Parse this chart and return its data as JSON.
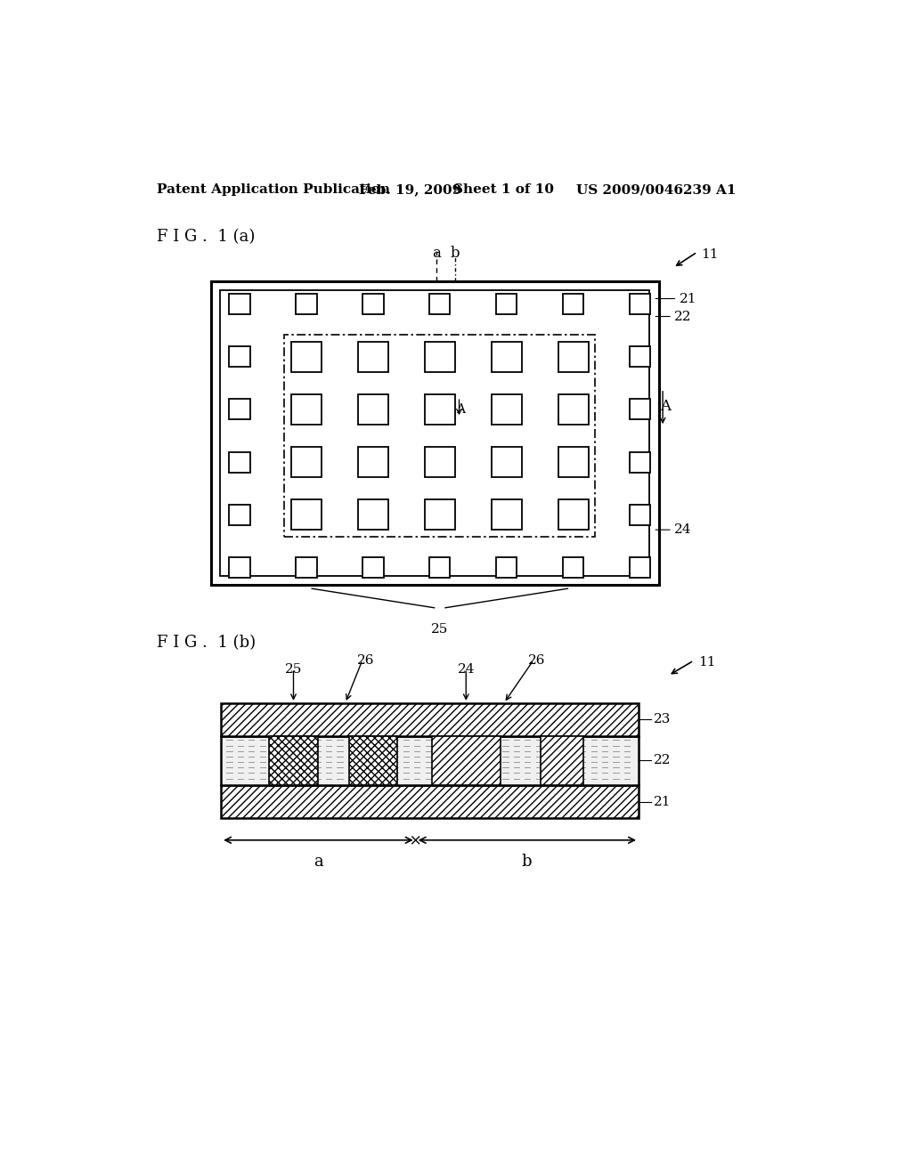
{
  "bg_color": "#ffffff",
  "header_text": "Patent Application Publication",
  "header_date": "Feb. 19, 2009",
  "header_sheet": "Sheet 1 of 10",
  "header_patent": "US 2009/0046239 A1",
  "fig_a_label": "F I G .  1 (a)",
  "fig_b_label": "F I G .  1 (b)",
  "label_11": "11",
  "label_21": "21",
  "label_22": "22",
  "label_23": "23",
  "label_24": "24",
  "label_25": "25",
  "label_26": "26",
  "label_A_cap": "A",
  "label_a": "a",
  "label_b": "b",
  "header_fontsize": 11,
  "fig_label_fontsize": 13,
  "annot_fontsize": 11
}
